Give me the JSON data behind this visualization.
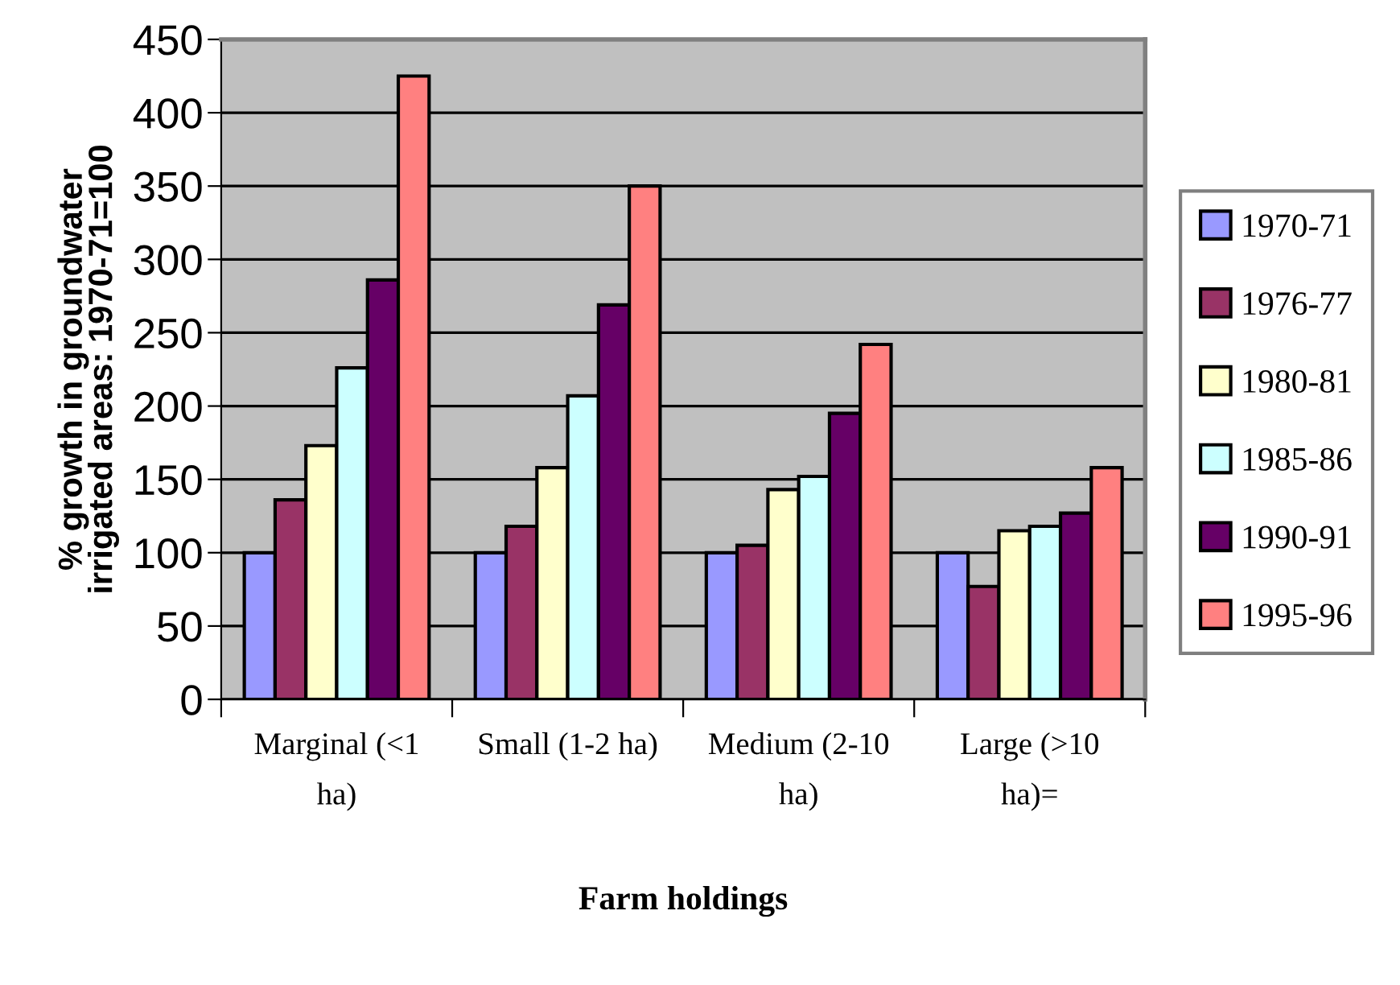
{
  "chart_data": {
    "type": "bar",
    "xlabel": "Farm holdings",
    "ylabel": "% growth in groundwater\nirrigated areas: 1970-71=100",
    "categories": [
      "Marginal (<1\nha)",
      "Small (1-2 ha)",
      "Medium (2-10\nha)",
      "Large (>10\nha)="
    ],
    "series": [
      {
        "name": "1970-71",
        "color": "#9999ff",
        "values": [
          100,
          100,
          100,
          100
        ]
      },
      {
        "name": "1976-77",
        "color": "#993366",
        "values": [
          136,
          118,
          105,
          77
        ]
      },
      {
        "name": "1980-81",
        "color": "#ffffcc",
        "values": [
          173,
          158,
          143,
          115
        ]
      },
      {
        "name": "1985-86",
        "color": "#ccffff",
        "values": [
          226,
          207,
          152,
          118
        ]
      },
      {
        "name": "1990-91",
        "color": "#660066",
        "values": [
          286,
          269,
          195,
          127
        ]
      },
      {
        "name": "1995-96",
        "color": "#ff8080",
        "values": [
          425,
          350,
          242,
          158
        ]
      }
    ],
    "ylim": [
      0,
      450
    ],
    "yticks": [
      0,
      50,
      100,
      150,
      200,
      250,
      300,
      350,
      400,
      450
    ],
    "grid": "y",
    "legend": "right"
  }
}
